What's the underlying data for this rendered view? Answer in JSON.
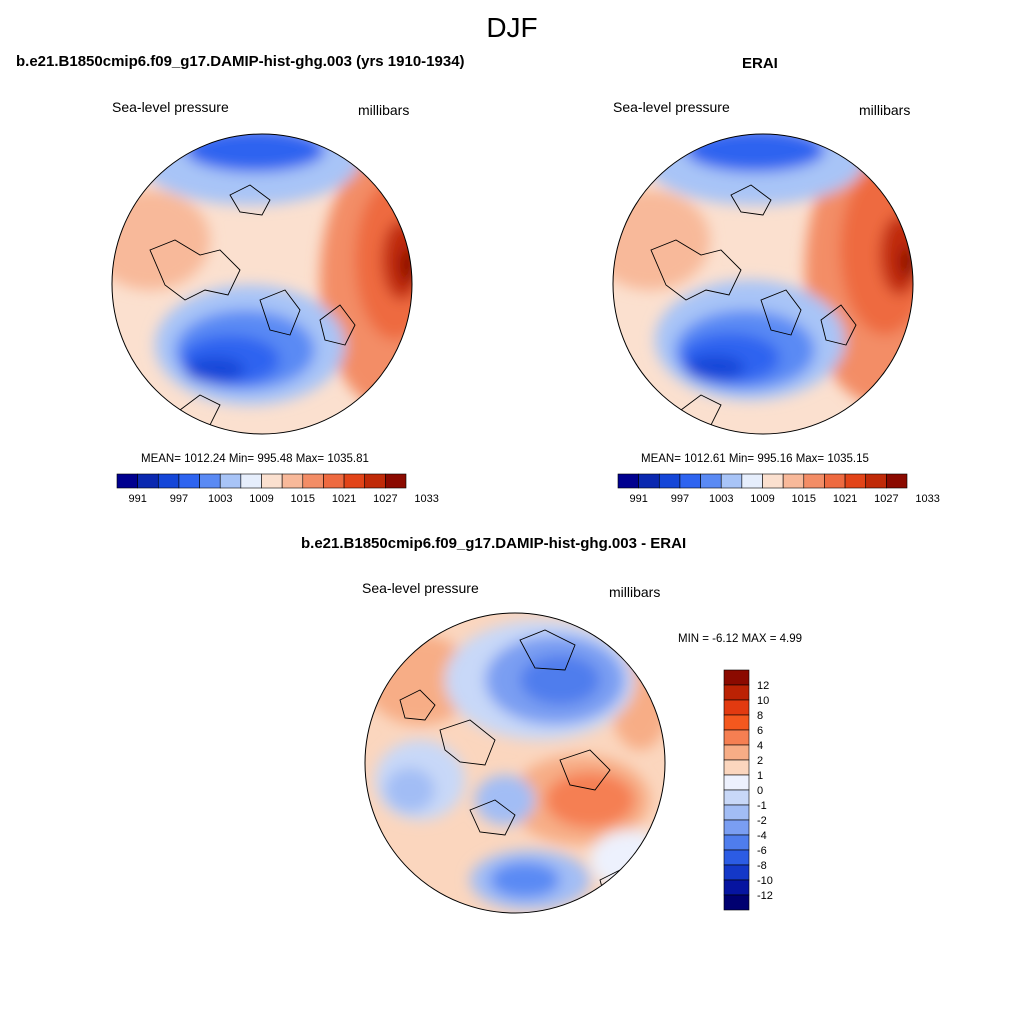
{
  "page_title": "DJF",
  "panels": [
    {
      "title": "b.e21.B1850cmip6.f09_g17.DAMIP-hist-ghg.003 (yrs 1910-1934)",
      "left_label": "Sea-level pressure",
      "right_label": "millibars",
      "stats": "MEAN= 1012.24  Min= 995.48  Max= 1035.81",
      "colorbar_ticks": [
        "991",
        "997",
        "1003",
        "1009",
        "1015",
        "1021",
        "1027",
        "1033"
      ]
    },
    {
      "title": "ERAI",
      "left_label": "Sea-level pressure",
      "right_label": "millibars",
      "stats": "MEAN= 1012.61  Min= 995.16  Max= 1035.15",
      "colorbar_ticks": [
        "991",
        "997",
        "1003",
        "1009",
        "1015",
        "1021",
        "1027",
        "1033"
      ]
    },
    {
      "title": "b.e21.B1850cmip6.f09_g17.DAMIP-hist-ghg.003 - ERAI",
      "left_label": "Sea-level pressure",
      "right_label": "millibars",
      "stats": "MIN =  -6.12 MAX =   4.99",
      "colorbar_ticks": [
        "12",
        "10",
        "8",
        "6",
        "4",
        "2",
        "1",
        "0",
        "-1",
        "-2",
        "-4",
        "-6",
        "-8",
        "-10",
        "-12"
      ]
    }
  ],
  "colors": {
    "abs_scale": [
      "#00008f",
      "#0a28b0",
      "#1446d8",
      "#2e64f0",
      "#5a8af4",
      "#a8c4f7",
      "#e6eefc",
      "#fbe0cf",
      "#f8b99a",
      "#f38d66",
      "#ee6a40",
      "#e24418",
      "#c02a08",
      "#8b0a00"
    ],
    "diff_scale": [
      "#8b0a00",
      "#bb2204",
      "#e23a10",
      "#f4581e",
      "#f57f52",
      "#f7ad86",
      "#fbd6be",
      "#edf1fd",
      "#c8d8f8",
      "#a2bdf5",
      "#7a9ef2",
      "#4f7ded",
      "#2c5ce4",
      "#1438c8",
      "#0614a0",
      "#000070"
    ],
    "coastline": "#000000"
  }
}
